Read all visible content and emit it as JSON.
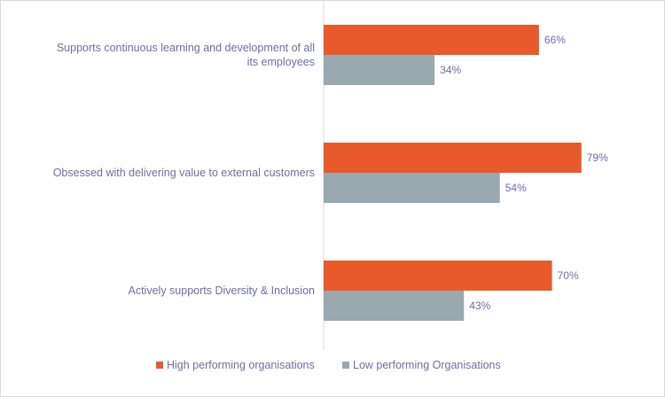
{
  "chart_data": {
    "type": "bar",
    "orientation": "horizontal",
    "categories": [
      [
        "Supports continuous learning and development of all",
        "its employees"
      ],
      [
        "Obsessed with delivering value to external customers"
      ],
      [
        "Actively supports Diversity & Inclusion"
      ]
    ],
    "series": [
      {
        "name": "High performing organisations",
        "values": [
          66,
          79,
          70
        ],
        "color": "#e85a2c"
      },
      {
        "name": "Low performing Organisations",
        "values": [
          34,
          54,
          43
        ],
        "color": "#9aa9b0"
      }
    ],
    "value_suffix": "%",
    "xlim": [
      0,
      100
    ],
    "grid": false,
    "legend_position": "bottom"
  }
}
